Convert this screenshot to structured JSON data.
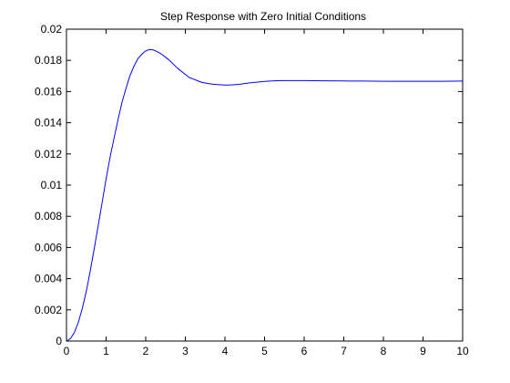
{
  "chart_data": {
    "type": "line",
    "title": "Step Response with Zero Initial Conditions",
    "xlabel": "",
    "ylabel": "",
    "xlim": [
      0,
      10
    ],
    "ylim": [
      0,
      0.02
    ],
    "grid": false,
    "x_ticks": [
      "0",
      "1",
      "2",
      "3",
      "4",
      "5",
      "6",
      "7",
      "8",
      "9",
      "10"
    ],
    "y_ticks": [
      "0",
      "0.002",
      "0.004",
      "0.006",
      "0.008",
      "0.01",
      "0.012",
      "0.014",
      "0.016",
      "0.018",
      "0.02"
    ],
    "series": [
      {
        "color": "#0000ff",
        "x": [
          0,
          0.1,
          0.2,
          0.3,
          0.4,
          0.5,
          0.6,
          0.7,
          0.8,
          0.9,
          1.0,
          1.1,
          1.2,
          1.3,
          1.4,
          1.5,
          1.6,
          1.7,
          1.8,
          1.9,
          2.0,
          2.1,
          2.2,
          2.3,
          2.4,
          2.5,
          2.6,
          2.7,
          2.8,
          2.9,
          3.0,
          3.1,
          3.2,
          3.3,
          3.4,
          3.5,
          3.6,
          3.7,
          3.8,
          3.9,
          4.0,
          4.1,
          4.2,
          4.4,
          4.6,
          4.8,
          5.0,
          5.2,
          5.4,
          5.6,
          5.8,
          6.0,
          6.5,
          7.0,
          7.5,
          8.0,
          8.5,
          9.0,
          9.5,
          10.0
        ],
        "y": [
          0,
          0.00015,
          0.00055,
          0.0012,
          0.0021,
          0.0032,
          0.0045,
          0.0059,
          0.0074,
          0.0089,
          0.0104,
          0.0118,
          0.013,
          0.0142,
          0.0153,
          0.0162,
          0.017,
          0.0176,
          0.0181,
          0.0184,
          0.0186,
          0.0187,
          0.01866,
          0.01855,
          0.0184,
          0.0182,
          0.018,
          0.01775,
          0.0175,
          0.0173,
          0.0171,
          0.0169,
          0.0168,
          0.0167,
          0.0166,
          0.01655,
          0.0165,
          0.01647,
          0.01645,
          0.01643,
          0.01642,
          0.01642,
          0.01643,
          0.01648,
          0.01655,
          0.0166,
          0.01665,
          0.01668,
          0.0167,
          0.0167,
          0.0167,
          0.0167,
          0.01669,
          0.01668,
          0.01667,
          0.01666,
          0.01666,
          0.01666,
          0.01666,
          0.01667
        ]
      }
    ]
  }
}
